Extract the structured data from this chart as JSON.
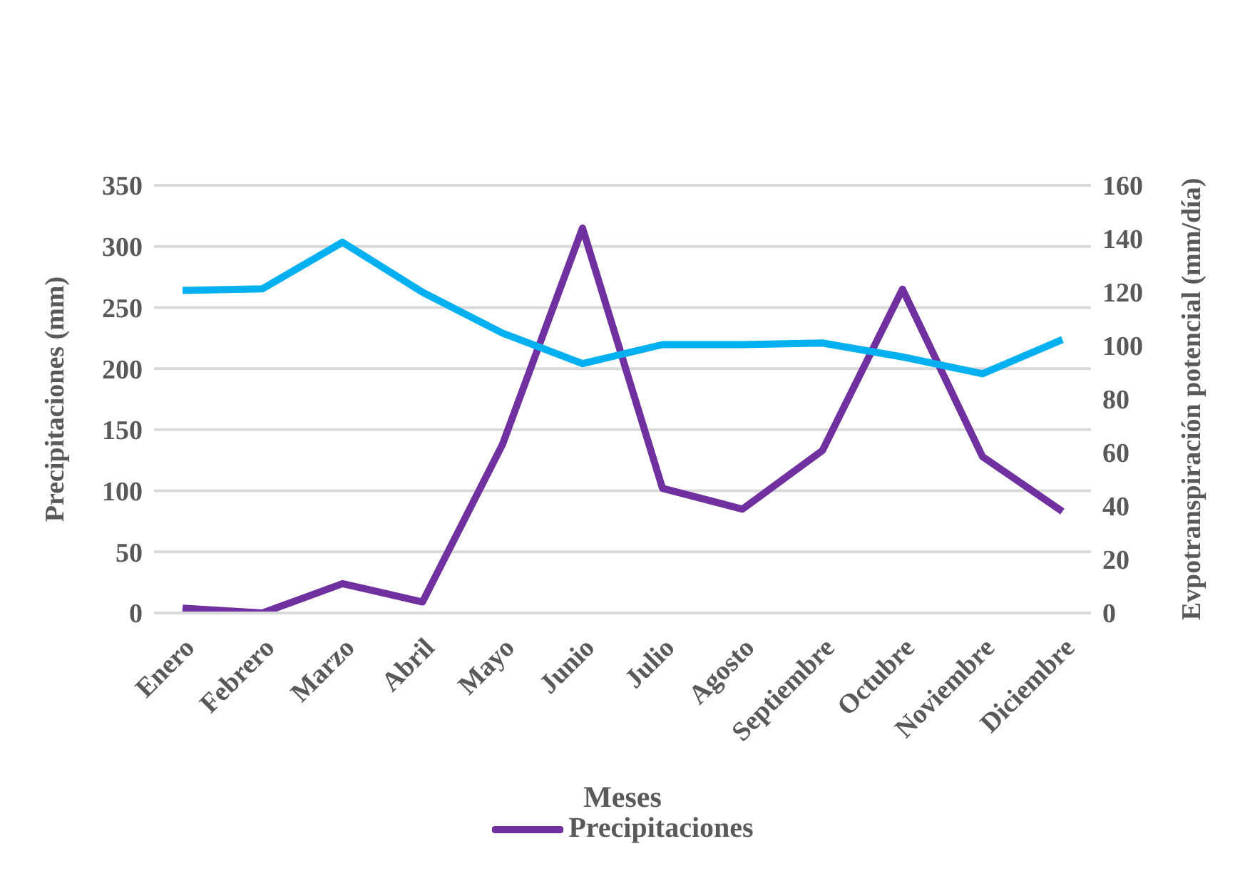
{
  "chart_data": {
    "type": "line",
    "xlabel": "Meses",
    "ylabel": "Precipitaciones (mm)",
    "y2label": "Evpotranspiración potencial (mm/día)",
    "categories": [
      "Enero",
      "Febrero",
      "Marzo",
      "Abril",
      "Mayo",
      "Junio",
      "Julio",
      "Agosto",
      "Septiembre",
      "Octubre",
      "Noviembre",
      "Diciembre"
    ],
    "series": [
      {
        "name": "Precipitaciones",
        "color": "#7030a0",
        "values": [
          4,
          0,
          24,
          9,
          138,
          315,
          102,
          85,
          133,
          265,
          128,
          83
        ]
      },
      {
        "color": "#00b0f0",
        "axis": "y2",
        "values": [
          120.7,
          121.3,
          138.7,
          120,
          104.7,
          93.3,
          100.4,
          100.4,
          101,
          95.8,
          89.5,
          102.3
        ]
      }
    ],
    "ylim": [
      0,
      350
    ],
    "yticks": [
      0,
      50,
      100,
      150,
      200,
      250,
      300,
      350
    ],
    "y2lim": [
      0,
      160
    ],
    "y2ticks": [
      0,
      20,
      40,
      60,
      80,
      100,
      120,
      140,
      160
    ],
    "grid": "y",
    "legend": "bottom",
    "marker": "none",
    "line_style": "solid"
  }
}
